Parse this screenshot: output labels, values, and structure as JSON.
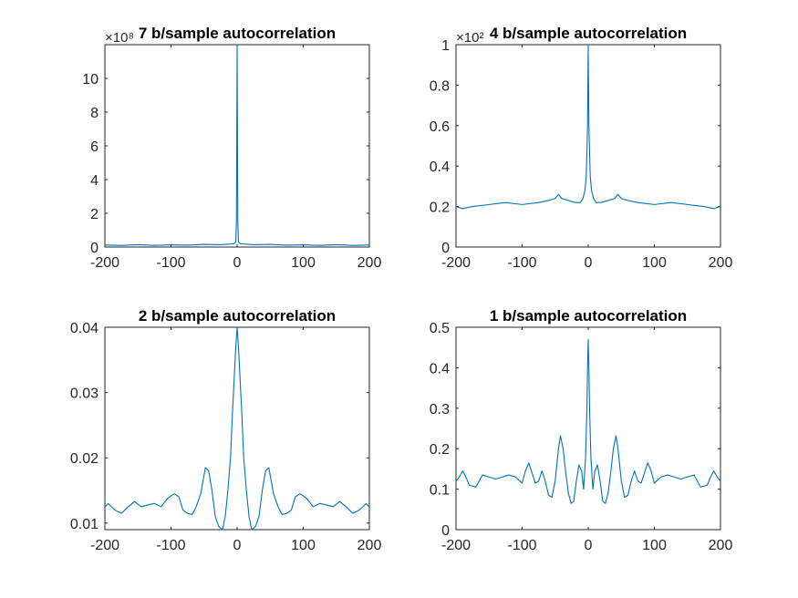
{
  "figure": {
    "background": "#ffffff"
  },
  "chart_data": [
    {
      "type": "line",
      "title": "7 b/sample autocorrelation",
      "exponent_label": "×10⁸",
      "xlim": [
        -200,
        200
      ],
      "ylim": [
        0,
        12
      ],
      "xticks": [
        -200,
        -100,
        0,
        100,
        200
      ],
      "xtick_labels": [
        "-200",
        "-100",
        "0",
        "100",
        "200"
      ],
      "yticks": [
        0,
        2,
        4,
        6,
        8,
        10
      ],
      "ytick_labels": [
        "0",
        "2",
        "4",
        "6",
        "8",
        "10"
      ],
      "grid": false,
      "series_color": "#0072bd",
      "series": [
        {
          "x": [
            -200,
            -175,
            -150,
            -125,
            -100,
            -75,
            -50,
            -25,
            -10,
            -5,
            -3,
            -2,
            -1,
            0,
            1,
            2,
            3,
            5,
            10,
            25,
            50,
            75,
            100,
            125,
            150,
            175,
            200
          ],
          "y": [
            0.12,
            0.1,
            0.14,
            0.1,
            0.13,
            0.11,
            0.16,
            0.14,
            0.18,
            0.2,
            0.25,
            0.3,
            1.5,
            12,
            1.5,
            0.3,
            0.25,
            0.2,
            0.18,
            0.14,
            0.16,
            0.11,
            0.13,
            0.1,
            0.14,
            0.1,
            0.12
          ]
        }
      ]
    },
    {
      "type": "line",
      "title": "4 b/sample autocorrelation",
      "exponent_label": "×10²",
      "xlim": [
        -200,
        200
      ],
      "ylim": [
        0,
        1
      ],
      "xticks": [
        -200,
        -100,
        0,
        100,
        200
      ],
      "xtick_labels": [
        "-200",
        "-100",
        "0",
        "100",
        "200"
      ],
      "yticks": [
        0,
        0.2,
        0.4,
        0.6,
        0.8,
        1
      ],
      "ytick_labels": [
        "0",
        "0.2",
        "0.4",
        "0.6",
        "0.8",
        "1"
      ],
      "grid": false,
      "series_color": "#0072bd",
      "series": [
        {
          "x": [
            -200,
            -190,
            -175,
            -150,
            -125,
            -100,
            -75,
            -60,
            -50,
            -45,
            -40,
            -30,
            -20,
            -12,
            -8,
            -5,
            -3,
            -1,
            0,
            1,
            3,
            5,
            8,
            12,
            20,
            30,
            40,
            45,
            50,
            60,
            75,
            100,
            125,
            150,
            175,
            190,
            200
          ],
          "y": [
            0.2,
            0.19,
            0.2,
            0.21,
            0.22,
            0.21,
            0.22,
            0.23,
            0.24,
            0.26,
            0.24,
            0.23,
            0.22,
            0.22,
            0.24,
            0.28,
            0.35,
            0.6,
            1.0,
            0.6,
            0.35,
            0.28,
            0.24,
            0.22,
            0.22,
            0.23,
            0.24,
            0.26,
            0.24,
            0.23,
            0.22,
            0.21,
            0.22,
            0.21,
            0.2,
            0.19,
            0.2
          ]
        }
      ]
    },
    {
      "type": "line",
      "title": "2 b/sample autocorrelation",
      "xlim": [
        -200,
        200
      ],
      "ylim": [
        0.009,
        0.04
      ],
      "xticks": [
        -200,
        -100,
        0,
        100,
        200
      ],
      "xtick_labels": [
        "-200",
        "-100",
        "0",
        "100",
        "200"
      ],
      "yticks": [
        0.01,
        0.02,
        0.03,
        0.04
      ],
      "ytick_labels": [
        "0.01",
        "0.02",
        "0.03",
        "0.04"
      ],
      "grid": false,
      "series_color": "#0072bd",
      "series": [
        {
          "x": [
            -200,
            -195,
            -185,
            -175,
            -165,
            -155,
            -145,
            -135,
            -125,
            -115,
            -105,
            -95,
            -88,
            -82,
            -75,
            -68,
            -62,
            -55,
            -48,
            -43,
            -38,
            -33,
            -28,
            -22,
            -18,
            -14,
            -10,
            -7,
            -4,
            -2,
            -1,
            0,
            1,
            2,
            4,
            7,
            10,
            14,
            18,
            22,
            28,
            33,
            38,
            43,
            48,
            55,
            62,
            68,
            75,
            82,
            88,
            95,
            105,
            115,
            125,
            135,
            145,
            155,
            165,
            175,
            185,
            195,
            200
          ],
          "y": [
            0.0125,
            0.013,
            0.012,
            0.0115,
            0.0125,
            0.0133,
            0.0125,
            0.0128,
            0.013,
            0.0125,
            0.0138,
            0.0145,
            0.014,
            0.012,
            0.0115,
            0.0113,
            0.0125,
            0.0145,
            0.0185,
            0.018,
            0.015,
            0.011,
            0.0095,
            0.009,
            0.011,
            0.015,
            0.02,
            0.027,
            0.033,
            0.037,
            0.0385,
            0.04,
            0.0385,
            0.037,
            0.033,
            0.027,
            0.02,
            0.015,
            0.011,
            0.009,
            0.0095,
            0.011,
            0.015,
            0.018,
            0.0185,
            0.0145,
            0.0125,
            0.0113,
            0.0115,
            0.012,
            0.014,
            0.0145,
            0.0138,
            0.0125,
            0.013,
            0.0128,
            0.0125,
            0.0133,
            0.0125,
            0.0115,
            0.012,
            0.013,
            0.0125
          ]
        }
      ]
    },
    {
      "type": "line",
      "title": "1 b/sample autocorrelation",
      "xlim": [
        -200,
        200
      ],
      "ylim": [
        0,
        0.5
      ],
      "xticks": [
        -200,
        -100,
        0,
        100,
        200
      ],
      "xtick_labels": [
        "-200",
        "-100",
        "0",
        "100",
        "200"
      ],
      "yticks": [
        0,
        0.1,
        0.2,
        0.3,
        0.4,
        0.5
      ],
      "ytick_labels": [
        "0",
        "0.1",
        "0.2",
        "0.3",
        "0.4",
        "0.5"
      ],
      "grid": false,
      "series_color": "#0072bd",
      "series": [
        {
          "x": [
            -200,
            -195,
            -190,
            -185,
            -180,
            -170,
            -160,
            -150,
            -140,
            -130,
            -120,
            -110,
            -100,
            -95,
            -90,
            -85,
            -80,
            -75,
            -70,
            -65,
            -60,
            -55,
            -50,
            -45,
            -42,
            -38,
            -34,
            -30,
            -26,
            -22,
            -18,
            -14,
            -10,
            -7,
            -4,
            -2,
            -1,
            0,
            1,
            2,
            4,
            7,
            10,
            14,
            18,
            22,
            26,
            30,
            34,
            38,
            42,
            45,
            50,
            55,
            60,
            65,
            70,
            75,
            80,
            85,
            90,
            95,
            100,
            110,
            120,
            130,
            140,
            150,
            160,
            170,
            180,
            185,
            190,
            195,
            200
          ],
          "y": [
            0.12,
            0.13,
            0.145,
            0.13,
            0.11,
            0.105,
            0.135,
            0.13,
            0.125,
            0.13,
            0.135,
            0.13,
            0.115,
            0.145,
            0.165,
            0.14,
            0.115,
            0.12,
            0.145,
            0.12,
            0.085,
            0.08,
            0.12,
            0.2,
            0.232,
            0.2,
            0.14,
            0.09,
            0.065,
            0.07,
            0.12,
            0.16,
            0.145,
            0.1,
            0.18,
            0.3,
            0.4,
            0.47,
            0.4,
            0.3,
            0.18,
            0.1,
            0.145,
            0.16,
            0.12,
            0.07,
            0.065,
            0.09,
            0.14,
            0.2,
            0.232,
            0.2,
            0.12,
            0.08,
            0.085,
            0.12,
            0.145,
            0.12,
            0.115,
            0.14,
            0.165,
            0.145,
            0.115,
            0.13,
            0.135,
            0.13,
            0.125,
            0.13,
            0.135,
            0.105,
            0.11,
            0.13,
            0.145,
            0.13,
            0.12
          ]
        }
      ]
    }
  ]
}
